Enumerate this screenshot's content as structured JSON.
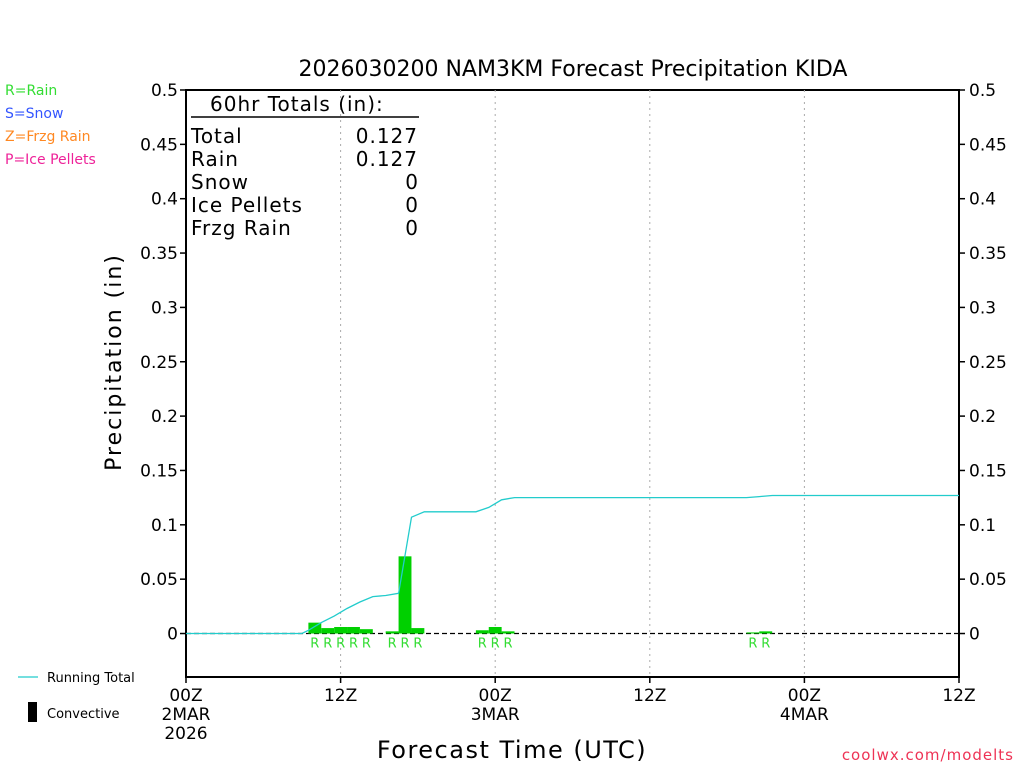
{
  "chart_data": {
    "type": "bar",
    "title": "2026030200 NAM3KM Forecast Precipitation KIDA",
    "xlabel": "Forecast Time (UTC)",
    "ylabel": "Precipitation (in)",
    "ylim": [
      -0.04,
      0.5
    ],
    "xlim": [
      0,
      60
    ],
    "y_ticks": [
      "0",
      "0.05",
      "0.1",
      "0.15",
      "0.2",
      "0.25",
      "0.3",
      "0.35",
      "0.4",
      "0.45",
      "0.5"
    ],
    "y_tick_values": [
      0,
      0.05,
      0.1,
      0.15,
      0.2,
      0.25,
      0.3,
      0.35,
      0.4,
      0.45,
      0.5
    ],
    "x_ticks": [
      {
        "hour": 0,
        "label": "00Z",
        "sub1": "2MAR",
        "sub2": "2026"
      },
      {
        "hour": 12,
        "label": "12Z",
        "sub1": "",
        "sub2": ""
      },
      {
        "hour": 24,
        "label": "00Z",
        "sub1": "3MAR",
        "sub2": ""
      },
      {
        "hour": 36,
        "label": "12Z",
        "sub1": "",
        "sub2": ""
      },
      {
        "hour": 48,
        "label": "00Z",
        "sub1": "4MAR",
        "sub2": ""
      },
      {
        "hour": 60,
        "label": "12Z",
        "sub1": "",
        "sub2": ""
      }
    ],
    "bars": [
      {
        "hour": 10,
        "value": 0.01,
        "type": "R"
      },
      {
        "hour": 11,
        "value": 0.005,
        "type": "R"
      },
      {
        "hour": 12,
        "value": 0.006,
        "type": "R"
      },
      {
        "hour": 13,
        "value": 0.006,
        "type": "R"
      },
      {
        "hour": 14,
        "value": 0.004,
        "type": "R"
      },
      {
        "hour": 16,
        "value": 0.002,
        "type": "R"
      },
      {
        "hour": 17,
        "value": 0.071,
        "type": "R"
      },
      {
        "hour": 18,
        "value": 0.005,
        "type": "R"
      },
      {
        "hour": 23,
        "value": 0.003,
        "type": "R"
      },
      {
        "hour": 24,
        "value": 0.006,
        "type": "R"
      },
      {
        "hour": 25,
        "value": 0.002,
        "type": "R"
      },
      {
        "hour": 44,
        "value": 0.001,
        "type": "R"
      },
      {
        "hour": 45,
        "value": 0.002,
        "type": "R"
      }
    ],
    "running_total": {
      "name": "Running Total",
      "x": [
        0,
        9,
        9.5,
        10.5,
        11.5,
        12.5,
        13.5,
        14.5,
        15.5,
        16.5,
        17.5,
        18.5,
        22.5,
        23.5,
        24.5,
        25.5,
        43.5,
        44.5,
        45.5,
        60
      ],
      "y": [
        0,
        0,
        0.003,
        0.01,
        0.016,
        0.023,
        0.029,
        0.034,
        0.035,
        0.037,
        0.107,
        0.112,
        0.112,
        0.116,
        0.123,
        0.125,
        0.125,
        0.126,
        0.127,
        0.127
      ]
    },
    "totals": {
      "header": "60hr Totals (in):",
      "rows": [
        {
          "label": "Total",
          "value": "0.127"
        },
        {
          "label": "Rain",
          "value": "0.127"
        },
        {
          "label": "Snow",
          "value": "0"
        },
        {
          "label": "Ice Pellets",
          "value": "0"
        },
        {
          "label": "Frzg Rain",
          "value": "0"
        }
      ]
    },
    "type_legend": [
      {
        "text": "R=Rain",
        "color": "#33dd33"
      },
      {
        "text": "S=Snow",
        "color": "#3355ff"
      },
      {
        "text": "Z=Frzg Rain",
        "color": "#ff8822"
      },
      {
        "text": "P=Ice Pellets",
        "color": "#ee2299"
      }
    ],
    "series_legend": {
      "running_total": "Running Total",
      "convective": "Convective"
    },
    "credit": "coolwx.com/modelts",
    "colors": {
      "bar": "#00d000",
      "running_total": "#22cccc",
      "rain_label": "#33dd33",
      "credit": "#ee3355"
    }
  }
}
